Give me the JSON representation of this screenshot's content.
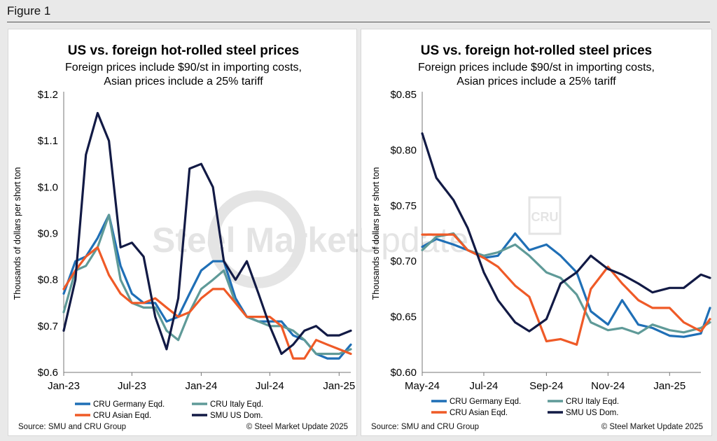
{
  "figure_label": "Figure 1",
  "watermark": {
    "brand": "Steel Market",
    "brand_light": "Update",
    "logo": "CRU"
  },
  "colors": {
    "germany": "#1f6fb6",
    "italy": "#5f9a98",
    "asian": "#ef5a27",
    "us": "#121a45"
  },
  "panels": [
    {
      "source": "Source: SMU and CRU Group",
      "copyright": "© Steel Market Update 2025"
    },
    {
      "source": "Source: SMU and CRU Group",
      "copyright": "© Steel Market Update 2025"
    }
  ],
  "chart_data": [
    {
      "type": "line",
      "title": "US vs. foreign hot-rolled steel prices",
      "subtitle": [
        "Foreign prices include $90/st in importing costs,",
        "Asian prices include a 25% tariff"
      ],
      "ylabel": "Thousands of dollars per short ton",
      "ylim": [
        0.6,
        1.2
      ],
      "yticks": [
        0.6,
        0.7,
        0.8,
        0.9,
        1.0,
        1.1,
        1.2
      ],
      "ytick_labels": [
        "$0.6",
        "$0.7",
        "$0.8",
        "$0.9",
        "$1.0",
        "$1.1",
        "$1.2"
      ],
      "xlim": [
        "2023-01",
        "2025-02"
      ],
      "xticks": [
        "2023-01",
        "2023-07",
        "2024-01",
        "2024-07",
        "2025-01"
      ],
      "xtick_labels": [
        "Jan-23",
        "Jul-23",
        "Jan-24",
        "Jul-24",
        "Jan-25"
      ],
      "legend_position": "bottom",
      "series": [
        {
          "name": "CRU Germany Eqd.",
          "color_key": "germany",
          "points": [
            [
              "2023-01",
              0.77
            ],
            [
              "2023-02",
              0.84
            ],
            [
              "2023-03",
              0.85
            ],
            [
              "2023-04",
              0.89
            ],
            [
              "2023-05",
              0.94
            ],
            [
              "2023-06",
              0.83
            ],
            [
              "2023-07",
              0.77
            ],
            [
              "2023-08",
              0.75
            ],
            [
              "2023-09",
              0.75
            ],
            [
              "2023-10",
              0.71
            ],
            [
              "2023-11",
              0.72
            ],
            [
              "2023-12",
              0.77
            ],
            [
              "2024-01",
              0.82
            ],
            [
              "2024-02",
              0.84
            ],
            [
              "2024-03",
              0.84
            ],
            [
              "2024-04",
              0.76
            ],
            [
              "2024-05",
              0.72
            ],
            [
              "2024-06",
              0.71
            ],
            [
              "2024-07",
              0.71
            ],
            [
              "2024-08",
              0.71
            ],
            [
              "2024-09",
              0.68
            ],
            [
              "2024-10",
              0.67
            ],
            [
              "2024-11",
              0.64
            ],
            [
              "2024-12",
              0.63
            ],
            [
              "2025-01",
              0.63
            ],
            [
              "2025-02",
              0.66
            ]
          ]
        },
        {
          "name": "CRU Italy Eqd.",
          "color_key": "italy",
          "points": [
            [
              "2023-01",
              0.73
            ],
            [
              "2023-02",
              0.82
            ],
            [
              "2023-03",
              0.83
            ],
            [
              "2023-04",
              0.87
            ],
            [
              "2023-05",
              0.94
            ],
            [
              "2023-06",
              0.8
            ],
            [
              "2023-07",
              0.75
            ],
            [
              "2023-08",
              0.74
            ],
            [
              "2023-09",
              0.74
            ],
            [
              "2023-10",
              0.69
            ],
            [
              "2023-11",
              0.67
            ],
            [
              "2023-12",
              0.73
            ],
            [
              "2024-01",
              0.78
            ],
            [
              "2024-02",
              0.8
            ],
            [
              "2024-03",
              0.82
            ],
            [
              "2024-04",
              0.75
            ],
            [
              "2024-05",
              0.72
            ],
            [
              "2024-06",
              0.71
            ],
            [
              "2024-07",
              0.7
            ],
            [
              "2024-08",
              0.7
            ],
            [
              "2024-09",
              0.69
            ],
            [
              "2024-10",
              0.67
            ],
            [
              "2024-11",
              0.64
            ],
            [
              "2024-12",
              0.64
            ],
            [
              "2025-01",
              0.64
            ],
            [
              "2025-02",
              0.65
            ]
          ]
        },
        {
          "name": "CRU Asian Eqd.",
          "color_key": "asian",
          "points": [
            [
              "2023-01",
              0.78
            ],
            [
              "2023-02",
              0.82
            ],
            [
              "2023-03",
              0.85
            ],
            [
              "2023-04",
              0.87
            ],
            [
              "2023-05",
              0.81
            ],
            [
              "2023-06",
              0.77
            ],
            [
              "2023-07",
              0.75
            ],
            [
              "2023-08",
              0.75
            ],
            [
              "2023-09",
              0.76
            ],
            [
              "2023-10",
              0.74
            ],
            [
              "2023-11",
              0.72
            ],
            [
              "2023-12",
              0.73
            ],
            [
              "2024-01",
              0.76
            ],
            [
              "2024-02",
              0.78
            ],
            [
              "2024-03",
              0.78
            ],
            [
              "2024-04",
              0.75
            ],
            [
              "2024-05",
              0.72
            ],
            [
              "2024-06",
              0.72
            ],
            [
              "2024-07",
              0.72
            ],
            [
              "2024-08",
              0.7
            ],
            [
              "2024-09",
              0.63
            ],
            [
              "2024-10",
              0.63
            ],
            [
              "2024-11",
              0.67
            ],
            [
              "2024-12",
              0.66
            ],
            [
              "2025-01",
              0.65
            ],
            [
              "2025-02",
              0.64
            ]
          ]
        },
        {
          "name": "SMU US Dom.",
          "color_key": "us",
          "points": [
            [
              "2023-01",
              0.69
            ],
            [
              "2023-02",
              0.8
            ],
            [
              "2023-03",
              1.07
            ],
            [
              "2023-04",
              1.16
            ],
            [
              "2023-05",
              1.1
            ],
            [
              "2023-06",
              0.87
            ],
            [
              "2023-07",
              0.88
            ],
            [
              "2023-08",
              0.85
            ],
            [
              "2023-09",
              0.72
            ],
            [
              "2023-10",
              0.65
            ],
            [
              "2023-11",
              0.76
            ],
            [
              "2023-12",
              1.04
            ],
            [
              "2024-01",
              1.05
            ],
            [
              "2024-02",
              1.0
            ],
            [
              "2024-03",
              0.84
            ],
            [
              "2024-04",
              0.8
            ],
            [
              "2024-05",
              0.84
            ],
            [
              "2024-06",
              0.77
            ],
            [
              "2024-07",
              0.7
            ],
            [
              "2024-08",
              0.64
            ],
            [
              "2024-09",
              0.66
            ],
            [
              "2024-10",
              0.69
            ],
            [
              "2024-11",
              0.7
            ],
            [
              "2024-12",
              0.68
            ],
            [
              "2025-01",
              0.68
            ],
            [
              "2025-02",
              0.69
            ]
          ]
        }
      ]
    },
    {
      "type": "line",
      "title": "US vs. foreign hot-rolled steel prices",
      "subtitle": [
        "Foreign prices include $90/st in importing costs,",
        "Asian prices include a 25% tariff"
      ],
      "ylabel": "Thousands of dollars per short ton",
      "ylim": [
        0.6,
        0.85
      ],
      "yticks": [
        0.6,
        0.65,
        0.7,
        0.75,
        0.8,
        0.85
      ],
      "ytick_labels": [
        "$0.60",
        "$0.65",
        "$0.70",
        "$0.75",
        "$0.80",
        "$0.85"
      ],
      "xlim": [
        "2024-05",
        "2025-02"
      ],
      "xticks": [
        "2024-05",
        "2024-07",
        "2024-09",
        "2024-11",
        "2025-01"
      ],
      "xtick_labels": [
        "May-24",
        "Jul-24",
        "Sep-24",
        "Nov-24",
        "Jan-25"
      ],
      "legend_position": "bottom",
      "series": [
        {
          "name": "CRU Germany Eqd.",
          "color_key": "germany",
          "points": [
            [
              "2024-05-01",
              0.713
            ],
            [
              "2024-05-15",
              0.72
            ],
            [
              "2024-06-01",
              0.715
            ],
            [
              "2024-06-15",
              0.71
            ],
            [
              "2024-07-01",
              0.703
            ],
            [
              "2024-07-15",
              0.705
            ],
            [
              "2024-08-01",
              0.725
            ],
            [
              "2024-08-15",
              0.71
            ],
            [
              "2024-09-01",
              0.715
            ],
            [
              "2024-09-15",
              0.705
            ],
            [
              "2024-10-01",
              0.69
            ],
            [
              "2024-10-15",
              0.655
            ],
            [
              "2024-11-01",
              0.643
            ],
            [
              "2024-11-15",
              0.665
            ],
            [
              "2024-12-01",
              0.643
            ],
            [
              "2024-12-15",
              0.64
            ],
            [
              "2025-01-01",
              0.633
            ],
            [
              "2025-01-15",
              0.632
            ],
            [
              "2025-02-01",
              0.635
            ],
            [
              "2025-02-10",
              0.658
            ]
          ]
        },
        {
          "name": "CRU Italy Eqd.",
          "color_key": "italy",
          "points": [
            [
              "2024-05-01",
              0.71
            ],
            [
              "2024-05-15",
              0.722
            ],
            [
              "2024-06-01",
              0.725
            ],
            [
              "2024-06-15",
              0.71
            ],
            [
              "2024-07-01",
              0.705
            ],
            [
              "2024-07-15",
              0.708
            ],
            [
              "2024-08-01",
              0.715
            ],
            [
              "2024-08-15",
              0.705
            ],
            [
              "2024-09-01",
              0.69
            ],
            [
              "2024-09-15",
              0.685
            ],
            [
              "2024-10-01",
              0.67
            ],
            [
              "2024-10-15",
              0.645
            ],
            [
              "2024-11-01",
              0.638
            ],
            [
              "2024-11-15",
              0.64
            ],
            [
              "2024-12-01",
              0.635
            ],
            [
              "2024-12-15",
              0.643
            ],
            [
              "2025-01-01",
              0.638
            ],
            [
              "2025-01-15",
              0.636
            ],
            [
              "2025-02-01",
              0.64
            ],
            [
              "2025-02-10",
              0.645
            ]
          ]
        },
        {
          "name": "CRU Asian Eqd.",
          "color_key": "asian",
          "points": [
            [
              "2024-05-01",
              0.724
            ],
            [
              "2024-05-15",
              0.724
            ],
            [
              "2024-06-01",
              0.724
            ],
            [
              "2024-06-15",
              0.71
            ],
            [
              "2024-07-01",
              0.703
            ],
            [
              "2024-07-15",
              0.695
            ],
            [
              "2024-08-01",
              0.678
            ],
            [
              "2024-08-15",
              0.668
            ],
            [
              "2024-09-01",
              0.628
            ],
            [
              "2024-09-15",
              0.63
            ],
            [
              "2024-10-01",
              0.625
            ],
            [
              "2024-10-15",
              0.675
            ],
            [
              "2024-11-01",
              0.695
            ],
            [
              "2024-11-15",
              0.68
            ],
            [
              "2024-12-01",
              0.665
            ],
            [
              "2024-12-15",
              0.658
            ],
            [
              "2025-01-01",
              0.658
            ],
            [
              "2025-01-15",
              0.645
            ],
            [
              "2025-02-01",
              0.637
            ],
            [
              "2025-02-10",
              0.648
            ]
          ]
        },
        {
          "name": "SMU US Dom.",
          "color_key": "us",
          "points": [
            [
              "2024-05-01",
              0.815
            ],
            [
              "2024-05-15",
              0.775
            ],
            [
              "2024-06-01",
              0.755
            ],
            [
              "2024-06-15",
              0.73
            ],
            [
              "2024-07-01",
              0.69
            ],
            [
              "2024-07-15",
              0.665
            ],
            [
              "2024-08-01",
              0.645
            ],
            [
              "2024-08-15",
              0.637
            ],
            [
              "2024-09-01",
              0.648
            ],
            [
              "2024-09-15",
              0.68
            ],
            [
              "2024-10-01",
              0.69
            ],
            [
              "2024-10-15",
              0.705
            ],
            [
              "2024-11-01",
              0.693
            ],
            [
              "2024-11-15",
              0.688
            ],
            [
              "2024-12-01",
              0.68
            ],
            [
              "2024-12-15",
              0.672
            ],
            [
              "2025-01-01",
              0.676
            ],
            [
              "2025-01-15",
              0.676
            ],
            [
              "2025-02-01",
              0.688
            ],
            [
              "2025-02-10",
              0.685
            ]
          ]
        }
      ]
    }
  ]
}
